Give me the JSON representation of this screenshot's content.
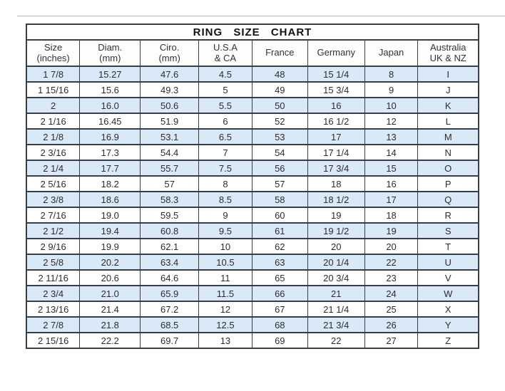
{
  "title": "RING  SIZE  CHART",
  "colors": {
    "row_alt": "#d9e9f8",
    "border": "#3a3d44",
    "text": "#222222"
  },
  "chart_data": {
    "type": "table",
    "title": "RING SIZE CHART",
    "columns": [
      {
        "line1": "Size",
        "line2": "(inches)"
      },
      {
        "line1": "Diam.",
        "line2": "(mm)"
      },
      {
        "line1": "Ciro.",
        "line2": "(mm)"
      },
      {
        "line1": "U.S.A",
        "line2": "& CA"
      },
      {
        "line1": "France",
        "line2": ""
      },
      {
        "line1": "Germany",
        "line2": ""
      },
      {
        "line1": "Japan",
        "line2": ""
      },
      {
        "line1": "Australia",
        "line2": "UK & NZ"
      }
    ],
    "rows": [
      [
        "1 7/8",
        "15.27",
        "47.6",
        "4.5",
        "48",
        "15 1/4",
        "8",
        "I"
      ],
      [
        "1 15/16",
        "15.6",
        "49.3",
        "5",
        "49",
        "15 3/4",
        "9",
        "J"
      ],
      [
        "2",
        "16.0",
        "50.6",
        "5.5",
        "50",
        "16",
        "10",
        "K"
      ],
      [
        "2 1/16",
        "16.45",
        "51.9",
        "6",
        "52",
        "16 1/2",
        "12",
        "L"
      ],
      [
        "2 1/8",
        "16.9",
        "53.1",
        "6.5",
        "53",
        "17",
        "13",
        "M"
      ],
      [
        "2 3/16",
        "17.3",
        "54.4",
        "7",
        "54",
        "17 1/4",
        "14",
        "N"
      ],
      [
        "2 1/4",
        "17.7",
        "55.7",
        "7.5",
        "56",
        "17 3/4",
        "15",
        "O"
      ],
      [
        "2 5/16",
        "18.2",
        "57",
        "8",
        "57",
        "18",
        "16",
        "P"
      ],
      [
        "2 3/8",
        "18.6",
        "58.3",
        "8.5",
        "58",
        "18 1/2",
        "17",
        "Q"
      ],
      [
        "2 7/16",
        "19.0",
        "59.5",
        "9",
        "60",
        "19",
        "18",
        "R"
      ],
      [
        "2 1/2",
        "19.4",
        "60.8",
        "9.5",
        "61",
        "19 1/2",
        "19",
        "S"
      ],
      [
        "2 9/16",
        "19.9",
        "62.1",
        "10",
        "62",
        "20",
        "20",
        "T"
      ],
      [
        "2 5/8",
        "20.2",
        "63.4",
        "10.5",
        "63",
        "20 1/4",
        "22",
        "U"
      ],
      [
        "2 11/16",
        "20.6",
        "64.6",
        "11",
        "65",
        "20 3/4",
        "23",
        "V"
      ],
      [
        "2 3/4",
        "21.0",
        "65.9",
        "11.5",
        "66",
        "21",
        "24",
        "W"
      ],
      [
        "2 13/16",
        "21.4",
        "67.2",
        "12",
        "67",
        "21 1/4",
        "25",
        "X"
      ],
      [
        "2 7/8",
        "21.8",
        "68.5",
        "12.5",
        "68",
        "21 3/4",
        "26",
        "Y"
      ],
      [
        "2 15/16",
        "22.2",
        "69.7",
        "13",
        "69",
        "22",
        "27",
        "Z"
      ]
    ],
    "layout": {
      "alternating_row_shading": "odd rows light blue starting with first data row",
      "grid": true,
      "legend": "none"
    }
  }
}
